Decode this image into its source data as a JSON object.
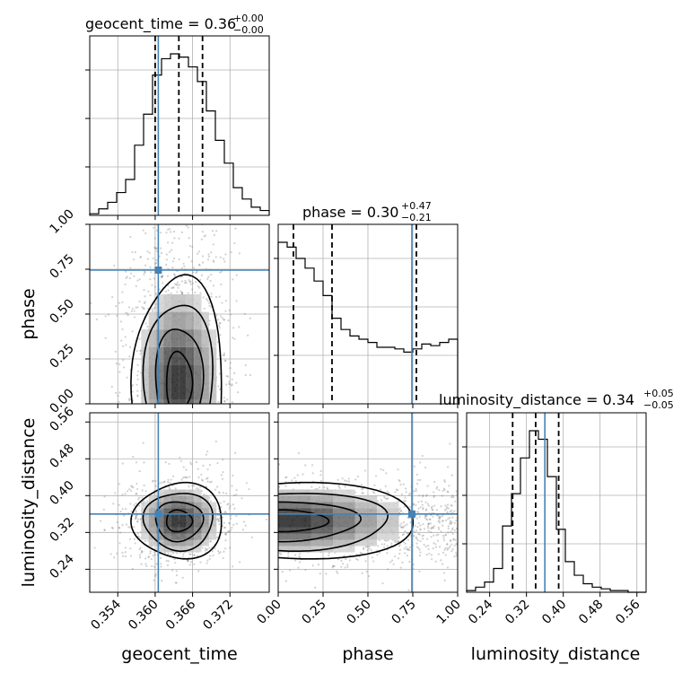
{
  "chart_data": {
    "type": "corner",
    "parameters": [
      "geocent_time",
      "phase",
      "luminosity_distance"
    ],
    "axis_labels": {
      "geocent_time": "geocent_time",
      "phase": "phase",
      "luminosity_distance": "luminosity_distance"
    },
    "ranges": {
      "geocent_time": [
        0.3495,
        0.3783
      ],
      "phase": [
        0.0,
        1.0
      ],
      "luminosity_distance": [
        0.19,
        0.58
      ]
    },
    "ticks": {
      "geocent_time": [
        0.354,
        0.36,
        0.366,
        0.372
      ],
      "geocent_time_labels": [
        "0.354",
        "0.360",
        "0.366",
        "0.372"
      ],
      "phase": [
        0.0,
        0.25,
        0.5,
        0.75,
        1.0
      ],
      "phase_labels": [
        "0.00",
        "0.25",
        "0.50",
        "0.75",
        "1.00"
      ],
      "luminosity_distance": [
        0.24,
        0.32,
        0.4,
        0.48,
        0.56
      ],
      "luminosity_distance_labels": [
        "0.24",
        "0.32",
        "0.40",
        "0.48",
        "0.56"
      ]
    },
    "titles": {
      "geocent_time": {
        "prefix": "geocent_time = ",
        "value": "0.36",
        "plus": "+0.00",
        "minus": "−0.00"
      },
      "phase": {
        "prefix": "phase = ",
        "value": "0.30",
        "plus": "+0.47",
        "minus": "−0.21"
      },
      "luminosity_distance": {
        "prefix": "luminosity_distance = ",
        "value": "0.34",
        "plus": "+0.05",
        "minus": "−0.05"
      }
    },
    "truths": {
      "geocent_time": 0.3605,
      "phase": 0.745,
      "luminosity_distance": 0.36
    },
    "quantiles": {
      "geocent_time": [
        0.36,
        0.3638,
        0.3676
      ],
      "phase": [
        0.085,
        0.3,
        0.77
      ],
      "luminosity_distance": [
        0.29,
        0.34,
        0.39
      ]
    },
    "histograms": {
      "geocent_time": {
        "edges_start": 0.3495,
        "bin_width": 0.00144,
        "counts": [
          1,
          4,
          8,
          14,
          22,
          43,
          62,
          86,
          96,
          99,
          97,
          91,
          82,
          64,
          46,
          32,
          17,
          10,
          5,
          3
        ]
      },
      "phase": {
        "edges_start": 0.0,
        "bin_width": 0.05,
        "counts": [
          100,
          97,
          90,
          84,
          76,
          67,
          53,
          46,
          42,
          40,
          38,
          35,
          35,
          34,
          32,
          34,
          37,
          36,
          38,
          40
        ]
      },
      "luminosity_distance": {
        "edges_start": 0.19,
        "bin_width": 0.0195,
        "counts": [
          1,
          3,
          6,
          14,
          39,
          58,
          79,
          95,
          90,
          68,
          37,
          18,
          10,
          5,
          3,
          2,
          1,
          1,
          0,
          0
        ]
      }
    },
    "density_2d": {
      "geocent_time_vs_phase": {
        "center": [
          0.3638,
          0.12
        ],
        "note_levels": 4
      },
      "geocent_time_vs_luminosity_distance": {
        "center": [
          0.3638,
          0.345
        ],
        "note_levels": 4
      },
      "phase_vs_luminosity_distance": {
        "center": [
          0.06,
          0.345
        ],
        "note_levels": 4
      }
    }
  }
}
